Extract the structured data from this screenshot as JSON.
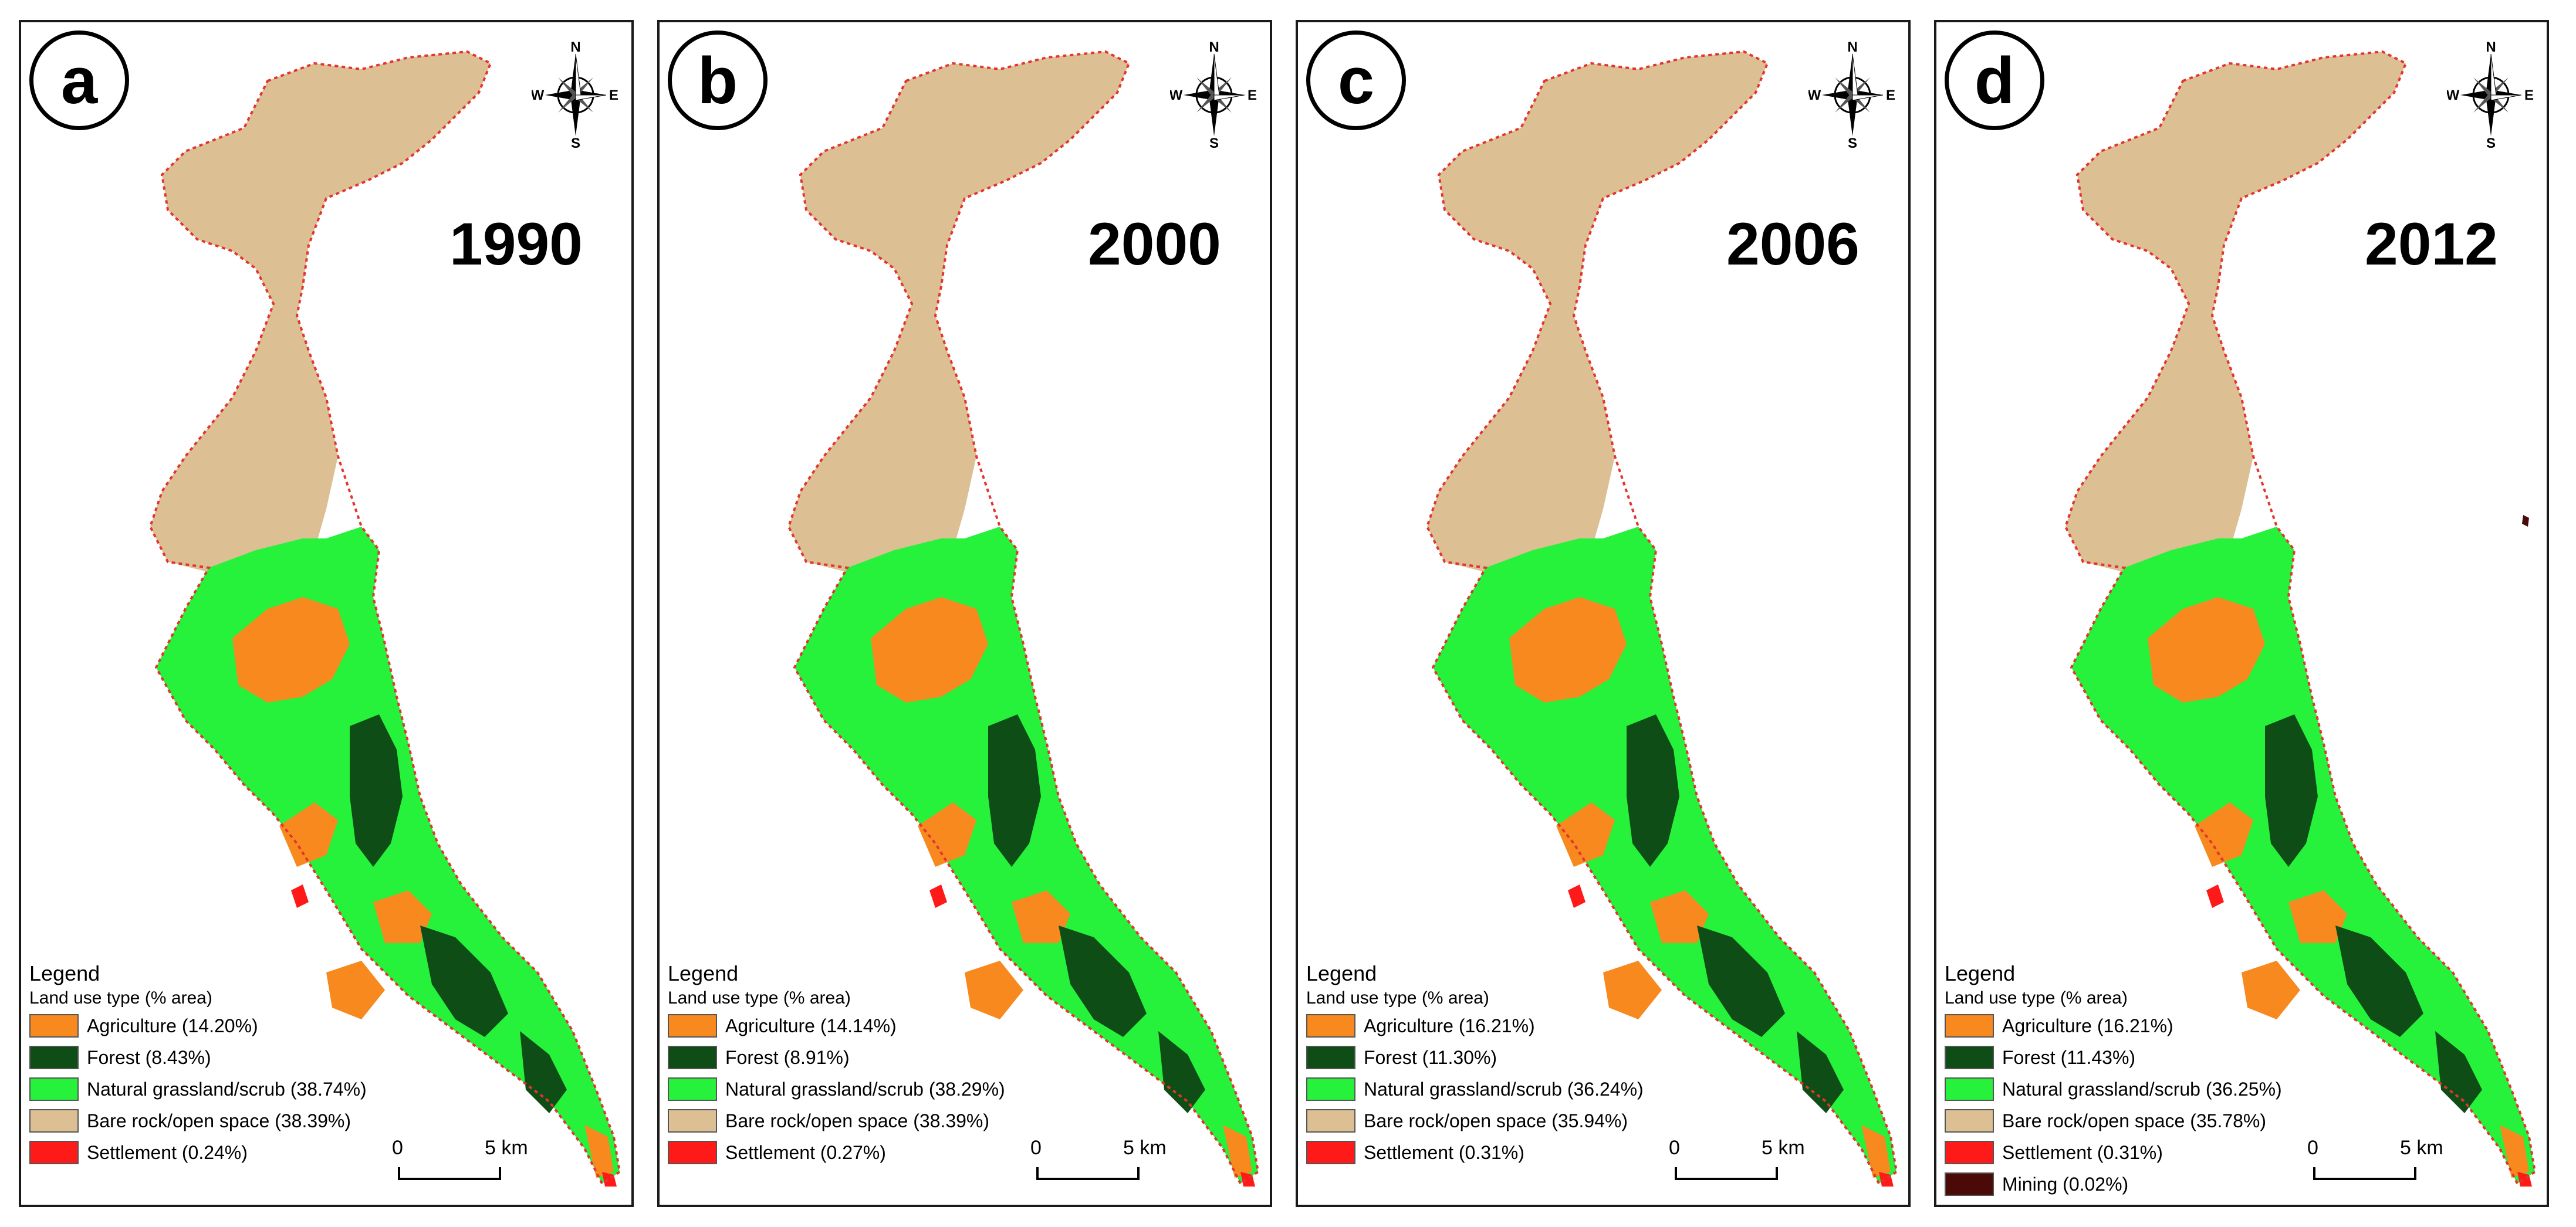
{
  "compass": {
    "n": "N",
    "s": "S",
    "e": "E",
    "w": "W"
  },
  "legend": {
    "title": "Legend",
    "subtitle": "Land use type (% area)"
  },
  "scale": {
    "start": "0",
    "end": "5 km"
  },
  "colors": {
    "agriculture": "#f7891f",
    "forest": "#0f4d16",
    "grassland": "#26f23c",
    "bare_rock": "#dcbf93",
    "settlement": "#ff1a1a",
    "mining": "#4a0a08",
    "boundary": "#e3342f"
  },
  "panels": [
    {
      "letter": "a",
      "year": "1990",
      "items": [
        {
          "label": "Agriculture (14.20%)",
          "color": "#f7891f",
          "value": 14.2
        },
        {
          "label": "Forest (8.43%)",
          "color": "#0f4d16",
          "value": 8.43
        },
        {
          "label": "Natural grassland/scrub (38.74%)",
          "color": "#26f23c",
          "value": 38.74
        },
        {
          "label": "Bare rock/open space (38.39%)",
          "color": "#dcbf93",
          "value": 38.39
        },
        {
          "label": "Settlement (0.24%)",
          "color": "#ff1a1a",
          "value": 0.24
        }
      ]
    },
    {
      "letter": "b",
      "year": "2000",
      "items": [
        {
          "label": "Agriculture (14.14%)",
          "color": "#f7891f",
          "value": 14.14
        },
        {
          "label": "Forest (8.91%)",
          "color": "#0f4d16",
          "value": 8.91
        },
        {
          "label": "Natural grassland/scrub (38.29%)",
          "color": "#26f23c",
          "value": 38.29
        },
        {
          "label": "Bare rock/open space (38.39%)",
          "color": "#dcbf93",
          "value": 38.39
        },
        {
          "label": "Settlement (0.27%)",
          "color": "#ff1a1a",
          "value": 0.27
        }
      ]
    },
    {
      "letter": "c",
      "year": "2006",
      "items": [
        {
          "label": "Agriculture (16.21%)",
          "color": "#f7891f",
          "value": 16.21
        },
        {
          "label": "Forest (11.30%)",
          "color": "#0f4d16",
          "value": 11.3
        },
        {
          "label": "Natural grassland/scrub (36.24%)",
          "color": "#26f23c",
          "value": 36.24
        },
        {
          "label": "Bare rock/open space (35.94%)",
          "color": "#dcbf93",
          "value": 35.94
        },
        {
          "label": "Settlement (0.31%)",
          "color": "#ff1a1a",
          "value": 0.31
        }
      ]
    },
    {
      "letter": "d",
      "year": "2012",
      "items": [
        {
          "label": "Agriculture (16.21%)",
          "color": "#f7891f",
          "value": 16.21
        },
        {
          "label": "Forest (11.43%)",
          "color": "#0f4d16",
          "value": 11.43
        },
        {
          "label": "Natural grassland/scrub (36.25%)",
          "color": "#26f23c",
          "value": 36.25
        },
        {
          "label": "Bare rock/open space (35.78%)",
          "color": "#dcbf93",
          "value": 35.78
        },
        {
          "label": "Settlement (0.31%)",
          "color": "#ff1a1a",
          "value": 0.31
        },
        {
          "label": "Mining (0.02%)",
          "color": "#4a0a08",
          "value": 0.02
        }
      ]
    }
  ]
}
